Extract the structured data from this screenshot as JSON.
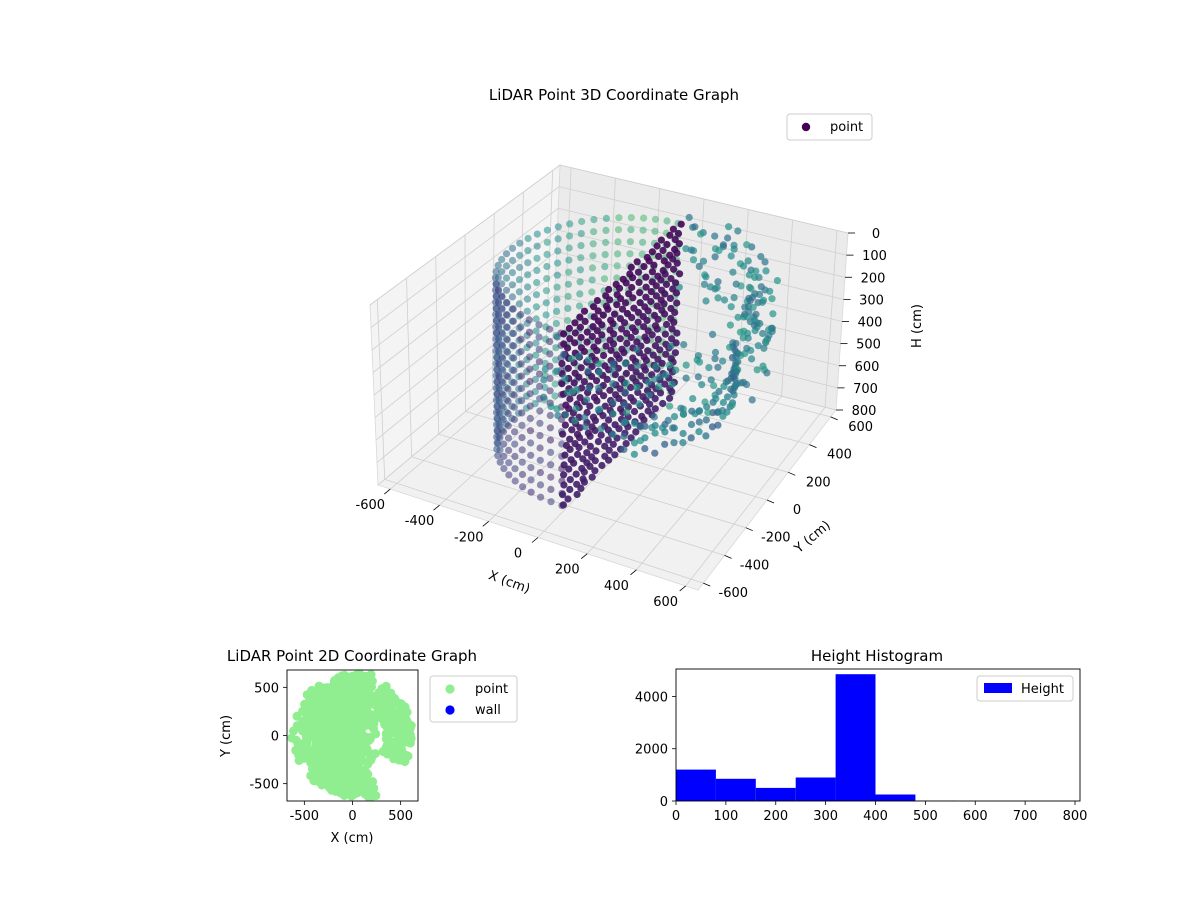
{
  "chart_data": [
    {
      "type": "scatter",
      "dims": 3,
      "title": "LiDAR Point 3D Coordinate Graph",
      "xlabel": "X (cm)",
      "ylabel": "Y (cm)",
      "zlabel": "H (cm)",
      "xticks": [
        -600,
        -400,
        -200,
        0,
        200,
        400,
        600
      ],
      "yticks": [
        -600,
        -400,
        -200,
        0,
        200,
        400,
        600
      ],
      "zticks": [
        0,
        100,
        200,
        300,
        400,
        500,
        600,
        700,
        800
      ],
      "xlim": [
        -650,
        650
      ],
      "ylim": [
        -650,
        650
      ],
      "zlim": [
        0,
        800
      ],
      "z_inverted": true,
      "colormap": "viridis",
      "grid": true,
      "legend": {
        "position": "top-right",
        "entries": [
          {
            "name": "point",
            "color": "#440154"
          }
        ]
      },
      "structure": {
        "cylinder_wall": {
          "radius": 450,
          "angle_range_deg": [
            90,
            270
          ],
          "height_range": [
            0,
            800
          ]
        },
        "arc_top": {
          "radius": 600,
          "angle_range_deg": [
            -90,
            90
          ],
          "height_range": [
            0,
            300
          ]
        },
        "arc_lower": {
          "radius": 450,
          "angle_range_deg": [
            -60,
            40
          ],
          "height_range": [
            350,
            500
          ]
        },
        "flat_face": {
          "x": 0,
          "y_range": [
            -450,
            450
          ],
          "height_range": [
            0,
            800
          ]
        }
      }
    },
    {
      "type": "scatter",
      "title": "LiDAR Point 2D Coordinate Graph",
      "xlabel": "X (cm)",
      "ylabel": "Y (cm)",
      "xticks": [
        -500,
        0,
        500
      ],
      "yticks": [
        -500,
        0,
        500
      ],
      "xlim": [
        -680,
        680
      ],
      "ylim": [
        -680,
        680
      ],
      "legend": {
        "position": "outside-right",
        "entries": [
          {
            "name": "point",
            "color": "#90ee90"
          },
          {
            "name": "wall",
            "color": "#0000ff"
          }
        ]
      },
      "regions": [
        {
          "shape": "half-disc",
          "radius": 650,
          "side": "left",
          "color": "#90ee90"
        },
        {
          "shape": "arc-band",
          "radius_range": [
            350,
            620
          ],
          "angle_range_deg": [
            -30,
            60
          ],
          "color": "#90ee90"
        }
      ]
    },
    {
      "type": "bar",
      "subtype": "histogram",
      "title": "Height Histogram",
      "xticks": [
        0,
        100,
        200,
        300,
        400,
        500,
        600,
        700,
        800
      ],
      "yticks": [
        0,
        2000,
        4000
      ],
      "xlim": [
        0,
        810
      ],
      "ylim": [
        0,
        5050
      ],
      "color": "#0000ff",
      "bin_edges": [
        0,
        80,
        160,
        240,
        320,
        400,
        480,
        560,
        640,
        720,
        800
      ],
      "values": [
        1200,
        850,
        500,
        900,
        4850,
        250,
        10,
        5,
        5,
        5
      ],
      "legend": {
        "position": "top-right",
        "entries": [
          {
            "name": "Height",
            "color": "#0000ff"
          }
        ]
      }
    }
  ]
}
